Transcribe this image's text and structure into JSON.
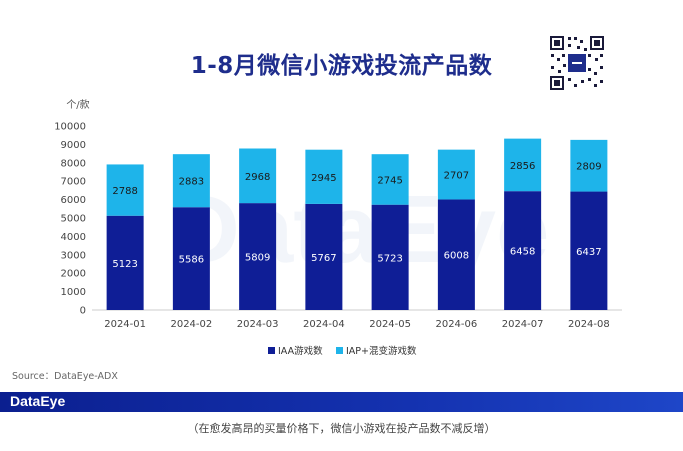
{
  "header": {
    "title": "1-8月微信小游戏投流产品数"
  },
  "watermark_text": "DataEye",
  "chart_data": {
    "type": "bar",
    "stacked": true,
    "title": "1-8月微信小游戏投流产品数",
    "ylabel": "个/款",
    "ylim": [
      0,
      10000
    ],
    "yticks": [
      0,
      1000,
      2000,
      3000,
      4000,
      5000,
      6000,
      7000,
      8000,
      9000,
      10000
    ],
    "grid": false,
    "legend_position": "bottom",
    "categories": [
      "2024-01",
      "2024-02",
      "2024-03",
      "2024-04",
      "2024-05",
      "2024-06",
      "2024-07",
      "2024-08"
    ],
    "series": [
      {
        "name": "IAA游戏数",
        "color": "#0F1E96",
        "values": [
          5123,
          5586,
          5809,
          5767,
          5723,
          6008,
          6458,
          6437
        ]
      },
      {
        "name": "IAP+混变游戏数",
        "color": "#1EB4EA",
        "values": [
          2788,
          2883,
          2968,
          2945,
          2745,
          2707,
          2856,
          2809
        ]
      }
    ]
  },
  "footer": {
    "source": "Source：DataEye-ADX",
    "brand": "DataEye",
    "caption": "（在愈发高昂的买量价格下，微信小游戏在投产品数不减反增）"
  }
}
